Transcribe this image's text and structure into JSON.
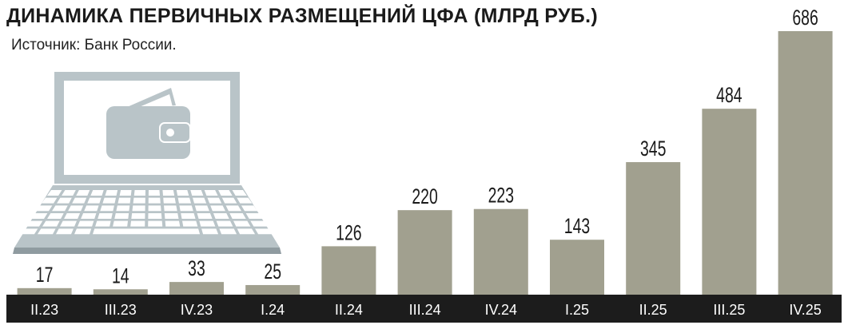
{
  "title": "ДИНАМИКА ПЕРВИЧНЫХ РАЗМЕЩЕНИЙ ЦФА (МЛРД РУБ.)",
  "source": "Источник: Банк России.",
  "colors": {
    "bar": "#a1a08f",
    "axis_band": "#1c1c1c",
    "tick_label": "#ffffff",
    "value_label": "#1a1a1a",
    "illustration_fill": "#b9c4c8",
    "illustration_stroke": "#8f9ba0"
  },
  "illustration": {
    "icon": "laptop-with-wallet-icon"
  },
  "chart_data": {
    "type": "bar",
    "title": "ДИНАМИКА ПЕРВИЧНЫХ РАЗМЕЩЕНИЙ ЦФА (МЛРД РУБ.)",
    "categories": [
      "II.23",
      "III.23",
      "IV.23",
      "I.24",
      "II.24",
      "III.24",
      "IV.24",
      "I.25",
      "II.25",
      "III.25",
      "IV.25"
    ],
    "values": [
      17,
      14,
      33,
      25,
      126,
      220,
      223,
      143,
      345,
      484,
      686
    ],
    "data_labels": [
      "17",
      "14",
      "33",
      "25",
      "126",
      "220",
      "223",
      "143",
      "345",
      "484",
      "686"
    ],
    "ylim": [
      0,
      686
    ],
    "grid": false,
    "legend": "none"
  }
}
